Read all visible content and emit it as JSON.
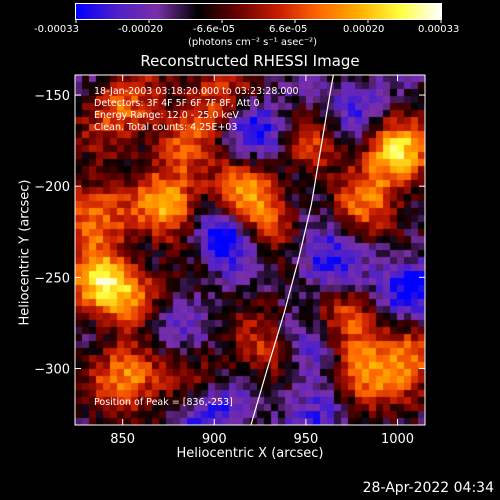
{
  "colorbar": {
    "tick_labels": [
      "-0.00033",
      "-0.00020",
      "-6.6e-05",
      "6.6e-05",
      "0.00020",
      "0.00033"
    ],
    "range": [
      -0.00033,
      0.00033
    ],
    "unit_label": "(photons cm⁻² s⁻¹ asec⁻²)",
    "colormap": [
      "#0000ff",
      "#5020c8",
      "#7a2fa8",
      "#000000",
      "#6a0000",
      "#c81e00",
      "#ff6a00",
      "#ffb000",
      "#ffff40",
      "#ffffff"
    ]
  },
  "chart_data": {
    "type": "heatmap",
    "title": "Reconstructed RHESSI Image",
    "xlabel": "Heliocentric X (arcsec)",
    "ylabel": "Heliocentric Y (arcsec)",
    "xlim": [
      824,
      1015
    ],
    "ylim": [
      -331,
      -139
    ],
    "xticks": [
      850,
      900,
      950,
      1000
    ],
    "yticks": [
      -150,
      -200,
      -250,
      -300
    ],
    "annotations": [
      "18-Jan-2003 03:18:20.000 to 03:23:28.000",
      "Detectors: 3F 4F 5F 6F 7F 8F, Att 0",
      "Energy Range: 12.0 - 25.0 keV",
      "Clean.  Total counts: 4.25E+03"
    ],
    "peak_label": "Position of Peak = [836,-253]",
    "peak": [
      836,
      -253
    ],
    "limb_curve": [
      [
        920,
        -331
      ],
      [
        929,
        -300
      ],
      [
        938,
        -270
      ],
      [
        946,
        -240
      ],
      [
        953,
        -210
      ],
      [
        958,
        -180
      ],
      [
        963,
        -150
      ],
      [
        965,
        -139
      ]
    ],
    "hotspots": [
      {
        "x": 840,
        "y": -255,
        "v": 1.0
      },
      {
        "x": 835,
        "y": -215,
        "v": 0.8
      },
      {
        "x": 877,
        "y": -212,
        "v": 0.85
      },
      {
        "x": 850,
        "y": -158,
        "v": 0.65
      },
      {
        "x": 900,
        "y": -150,
        "v": 0.55
      },
      {
        "x": 915,
        "y": -200,
        "v": 0.7
      },
      {
        "x": 928,
        "y": -222,
        "v": 0.6
      },
      {
        "x": 860,
        "y": -262,
        "v": 0.55
      },
      {
        "x": 855,
        "y": -305,
        "v": 0.85
      },
      {
        "x": 890,
        "y": -310,
        "v": 0.5
      },
      {
        "x": 932,
        "y": -292,
        "v": 0.55
      },
      {
        "x": 970,
        "y": -268,
        "v": 0.45
      },
      {
        "x": 1000,
        "y": -182,
        "v": 0.95
      },
      {
        "x": 985,
        "y": -210,
        "v": 0.6
      },
      {
        "x": 980,
        "y": -305,
        "v": 0.85
      },
      {
        "x": 1005,
        "y": -290,
        "v": 0.7
      },
      {
        "x": 955,
        "y": -175,
        "v": 0.45
      },
      {
        "x": 880,
        "y": -180,
        "v": 0.45
      }
    ],
    "coldspots": [
      {
        "x": 905,
        "y": -228,
        "v": -0.9
      },
      {
        "x": 895,
        "y": -320,
        "v": -0.85
      },
      {
        "x": 960,
        "y": -240,
        "v": -0.65
      },
      {
        "x": 950,
        "y": -295,
        "v": -0.55
      },
      {
        "x": 1005,
        "y": -255,
        "v": -0.75
      },
      {
        "x": 870,
        "y": -275,
        "v": -0.5
      },
      {
        "x": 925,
        "y": -170,
        "v": -0.6
      },
      {
        "x": 975,
        "y": -155,
        "v": -0.5
      },
      {
        "x": 955,
        "y": -325,
        "v": -0.5
      }
    ]
  },
  "footer": {
    "timestamp": "28-Apr-2022 04:34"
  }
}
